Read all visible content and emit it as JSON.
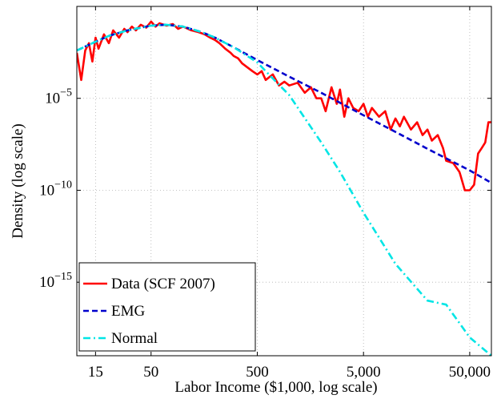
{
  "chart_data": {
    "type": "line",
    "xlabel": "Labor Income ($1,000, log scale)",
    "ylabel": "Density (log scale)",
    "xscale": "log",
    "yscale": "log",
    "xlim": [
      10,
      80000
    ],
    "ylim": [
      1e-19,
      1
    ],
    "grid": true,
    "legend_position": "bottom-left",
    "x_ticks": [
      {
        "value": 15,
        "label": "15"
      },
      {
        "value": 50,
        "label": "50"
      },
      {
        "value": 500,
        "label": "500"
      },
      {
        "value": 5000,
        "label": "5,000"
      },
      {
        "value": 50000,
        "label": "50,000"
      }
    ],
    "y_ticks": [
      {
        "value": 1e-05,
        "base": "10",
        "exp": "−5"
      },
      {
        "value": 1e-10,
        "base": "10",
        "exp": "−10"
      },
      {
        "value": 1e-15,
        "base": "10",
        "exp": "−15"
      }
    ],
    "series": [
      {
        "name": "Data (SCF 2007)",
        "color": "#ff0000",
        "style": "solid",
        "x": [
          10,
          11,
          12,
          13,
          14,
          15,
          16,
          18,
          20,
          22,
          25,
          28,
          30,
          33,
          36,
          40,
          45,
          50,
          55,
          60,
          70,
          80,
          90,
          100,
          120,
          140,
          160,
          180,
          200,
          220,
          250,
          280,
          300,
          330,
          360,
          400,
          450,
          500,
          550,
          600,
          700,
          800,
          900,
          1000,
          1200,
          1400,
          1600,
          1800,
          2000,
          2200,
          2500,
          2800,
          3000,
          3300,
          3600,
          4000,
          4500,
          5000,
          5500,
          6000,
          7000,
          8000,
          9000,
          10000,
          11000,
          12000,
          14000,
          16000,
          18000,
          20000,
          22000,
          25000,
          28000,
          30000,
          35000,
          40000,
          40500,
          45000,
          50000,
          55000,
          60000,
          65000,
          70000,
          75000,
          75500,
          80000
        ],
        "y": [
          0.003,
          0.0001,
          0.004,
          0.01,
          0.001,
          0.02,
          0.005,
          0.03,
          0.01,
          0.05,
          0.02,
          0.06,
          0.04,
          0.08,
          0.05,
          0.1,
          0.07,
          0.15,
          0.08,
          0.12,
          0.09,
          0.11,
          0.06,
          0.08,
          0.05,
          0.04,
          0.03,
          0.02,
          0.015,
          0.01,
          0.005,
          0.003,
          0.002,
          0.0015,
          0.0008,
          0.0005,
          0.0003,
          0.0002,
          0.0003,
          0.0001,
          0.0002,
          5e-05,
          8e-05,
          5e-05,
          7e-05,
          2e-05,
          4e-05,
          1e-05,
          1e-05,
          2e-06,
          4e-05,
          5e-06,
          3e-05,
          1e-06,
          1e-05,
          3e-06,
          2e-06,
          5e-06,
          1e-06,
          3e-06,
          1e-06,
          2e-06,
          2e-07,
          8e-07,
          3e-07,
          1e-06,
          2e-07,
          5e-07,
          1e-07,
          2e-07,
          5e-08,
          1e-07,
          2e-08,
          4e-09,
          3e-09,
          1e-09,
          8e-10,
          1e-10,
          1e-10,
          2e-10,
          1e-08,
          2e-08,
          4e-08,
          5e-07,
          5e-07,
          5e-07
        ]
      },
      {
        "name": "EMG",
        "color": "#0000cc",
        "style": "dashed",
        "x": [
          10,
          15,
          20,
          30,
          50,
          70,
          100,
          150,
          200,
          300,
          500,
          1000,
          2000,
          5000,
          10000,
          20000,
          50000,
          80000
        ],
        "y": [
          0.004,
          0.012,
          0.025,
          0.05,
          0.09,
          0.1,
          0.08,
          0.04,
          0.02,
          0.006,
          0.0012,
          0.00015,
          2e-05,
          1.2e-06,
          1.5e-07,
          1.8e-08,
          1.2e-09,
          2.5e-10
        ]
      },
      {
        "name": "Normal",
        "color": "#00e5e5",
        "style": "dashdot",
        "x": [
          10,
          15,
          20,
          30,
          50,
          70,
          100,
          150,
          200,
          300,
          500,
          700,
          1000,
          2000,
          3000,
          5000,
          10000,
          20000,
          30000,
          50000,
          80000
        ],
        "y": [
          0.004,
          0.012,
          0.025,
          0.05,
          0.09,
          0.1,
          0.08,
          0.04,
          0.02,
          0.006,
          0.0009,
          0.00012,
          1.5e-05,
          4e-08,
          1e-09,
          6e-12,
          1e-14,
          1e-16,
          6e-17,
          1e-18,
          1e-19
        ]
      }
    ]
  }
}
